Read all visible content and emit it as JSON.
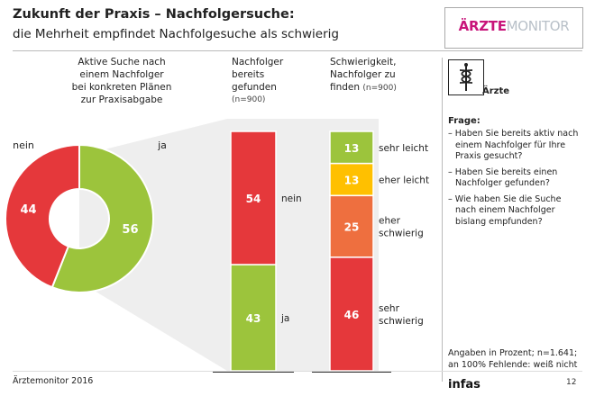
{
  "header": {
    "title": "Zukunft der Praxis – Nachfolgersuche:",
    "subtitle": "die Mehrheit empfindet Nachfolgesuche als schwierig"
  },
  "logo": {
    "part1": "ÄRZTE",
    "part2": "MONITOR"
  },
  "columns": {
    "col1": [
      "Aktive Suche nach",
      "einem Nachfolger",
      "bei konkreten Plänen",
      "zur Praxisabgabe"
    ],
    "col2": [
      "Nachfolger",
      "bereits",
      "gefunden"
    ],
    "col2_n": "(n=900)",
    "col3": [
      "Schwierigkeit,",
      "Nachfolger zu",
      "finden"
    ],
    "col3_n": "(n=900)"
  },
  "sidebar": {
    "icon_label": "Ärzte",
    "frage_title": "Frage:",
    "questions": [
      "– Haben Sie bereits aktiv nach einem Nachfolger für Ihre Praxis gesucht?",
      "– Haben Sie bereits einen Nachfolger gefunden?",
      "– Wie haben Sie die Suche nach einem Nachfolger bislang empfunden?"
    ],
    "note_line1": "Angaben in Prozent; n=1.641;",
    "note_line2": "an 100% Fehlende: weiß nicht"
  },
  "footer": {
    "source": "Ärztemonitor 2016",
    "brand": "infas",
    "page": "12"
  },
  "colors": {
    "red": "#e5383b",
    "green": "#9cc43c",
    "yellow": "#ffc000",
    "orange": "#ee6f3f",
    "wedge": "#eeeeee",
    "baseline": "#333333"
  },
  "chart_data": [
    {
      "type": "pie",
      "title": "Aktive Suche nach einem Nachfolger bei konkreten Plänen zur Praxisabgabe",
      "categories": [
        "nein",
        "ja"
      ],
      "values": [
        44,
        56
      ],
      "colors": [
        "#e5383b",
        "#9cc43c"
      ]
    },
    {
      "type": "bar",
      "title": "Nachfolger bereits gefunden",
      "stacked": true,
      "n": "(n=900)",
      "categories": [
        "nein",
        "ja"
      ],
      "values": [
        54,
        43
      ],
      "colors": [
        "#e5383b",
        "#9cc43c"
      ]
    },
    {
      "type": "bar",
      "title": "Schwierigkeit, Nachfolger zu finden",
      "stacked": true,
      "n": "(n=900)",
      "categories": [
        "sehr leicht",
        "eher leicht",
        "eher schwierig",
        "sehr schwierig"
      ],
      "category_lines": [
        [
          "sehr leicht"
        ],
        [
          "eher leicht"
        ],
        [
          "eher",
          "schwierig"
        ],
        [
          "sehr",
          "schwierig"
        ]
      ],
      "values": [
        13,
        13,
        25,
        46
      ],
      "colors": [
        "#9cc43c",
        "#ffc000",
        "#ee6f3f",
        "#e5383b"
      ]
    }
  ]
}
